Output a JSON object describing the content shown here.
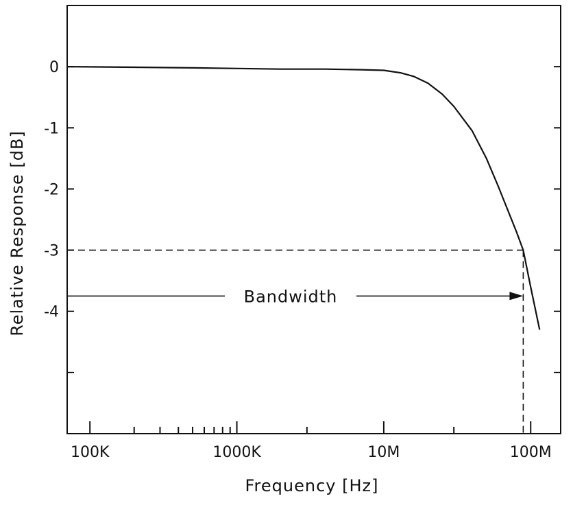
{
  "chart_data": {
    "type": "line",
    "title": "",
    "xlabel": "Frequency [Hz]",
    "ylabel": "Relative Response [dB]",
    "x_scale": "log",
    "xlim": [
      70000,
      160000000
    ],
    "ylim": [
      -6,
      1
    ],
    "x_ticks": [
      {
        "value": 100000,
        "label": "100K"
      },
      {
        "value": 1000000,
        "label": "1000K"
      },
      {
        "value": 10000000,
        "label": "10M"
      },
      {
        "value": 100000000,
        "label": "100M"
      }
    ],
    "x_minor_ticks": [
      200000,
      300000,
      400000,
      500000,
      600000,
      700000,
      800000,
      900000,
      3000000,
      30000000
    ],
    "y_ticks": [
      {
        "value": 0,
        "label": "0"
      },
      {
        "value": -1,
        "label": "-1"
      },
      {
        "value": -2,
        "label": "-2"
      },
      {
        "value": -3,
        "label": "-3"
      },
      {
        "value": -4,
        "label": "-4"
      },
      {
        "value": -5,
        "label": ""
      }
    ],
    "grid": false,
    "series": [
      {
        "x": [
          70000,
          200000,
          500000,
          1000000,
          2000000,
          4000000,
          7000000,
          10000000,
          13000000,
          16000000,
          20000000,
          25000000,
          30000000,
          40000000,
          50000000,
          60000000,
          70000000,
          80000000,
          89000000,
          100000000,
          115000000
        ],
        "y": [
          0,
          -0.01,
          -0.02,
          -0.03,
          -0.04,
          -0.04,
          -0.05,
          -0.06,
          -0.1,
          -0.16,
          -0.27,
          -0.45,
          -0.65,
          -1.05,
          -1.5,
          -1.95,
          -2.35,
          -2.7,
          -3.0,
          -3.6,
          -4.3
        ]
      }
    ],
    "annotations": {
      "bandwidth_label": "Bandwidth",
      "cutoff_level_db": -3,
      "cutoff_frequency": 89000000,
      "bandwidth_arrow_level_db": -3.75
    }
  }
}
